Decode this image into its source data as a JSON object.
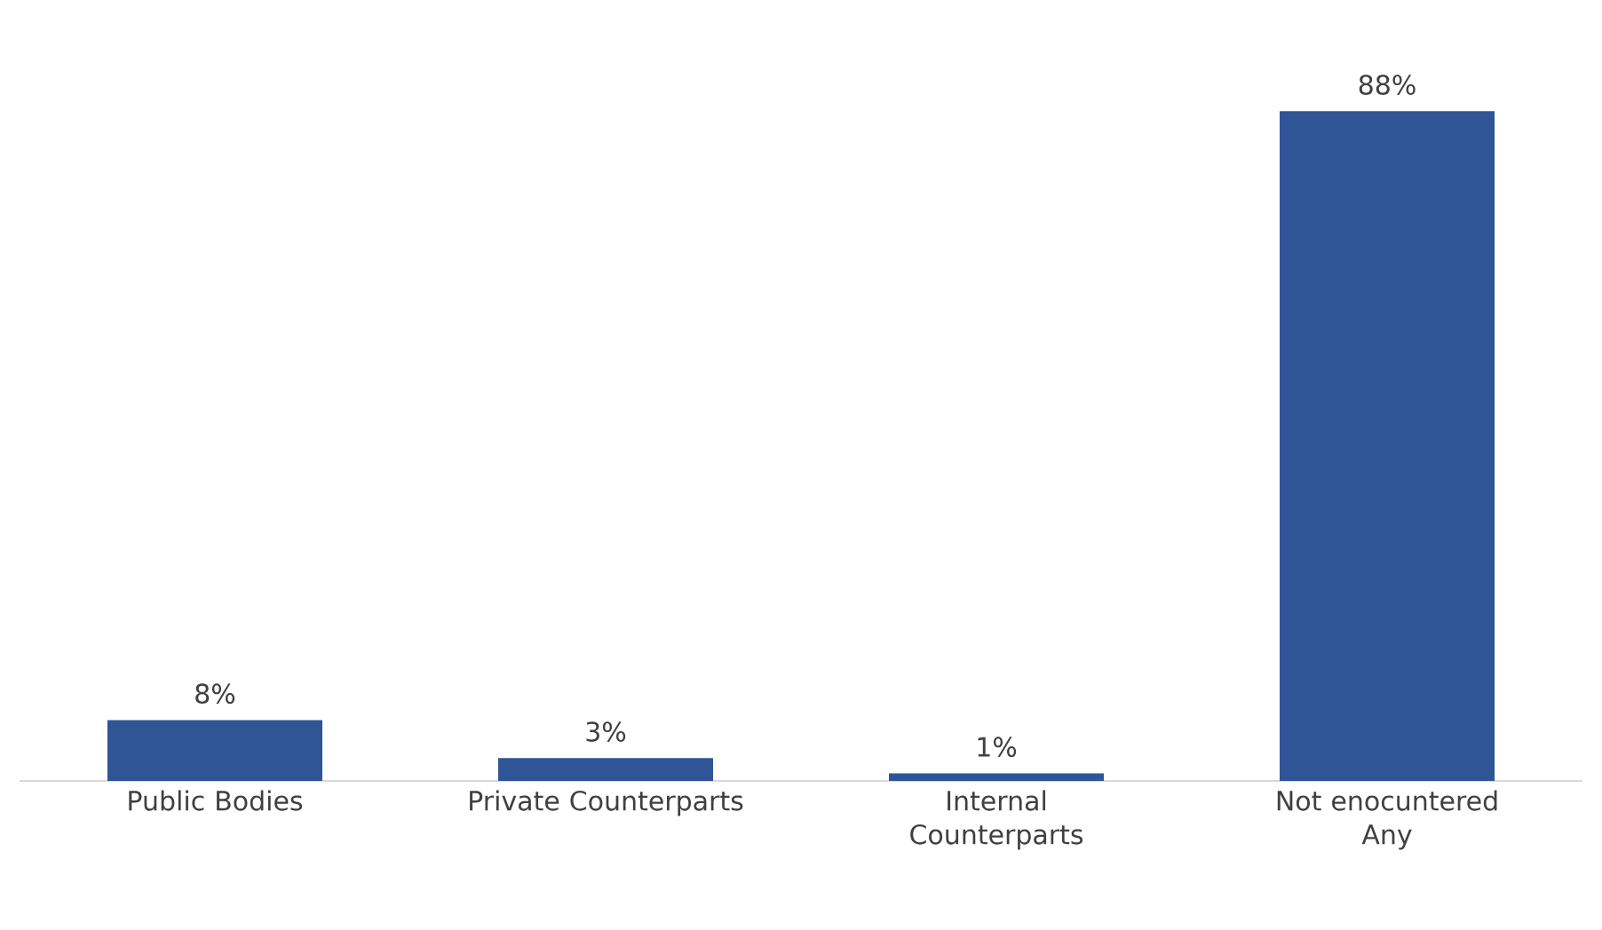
{
  "chart_data": {
    "type": "bar",
    "categories": [
      "Public Bodies",
      "Private Counterparts",
      "Internal Counterparts",
      "Not enocuntered Any"
    ],
    "values": [
      8,
      3,
      1,
      88
    ],
    "value_labels": [
      "8%",
      "3%",
      "1%",
      "88%"
    ],
    "color": "#2f5597"
  }
}
